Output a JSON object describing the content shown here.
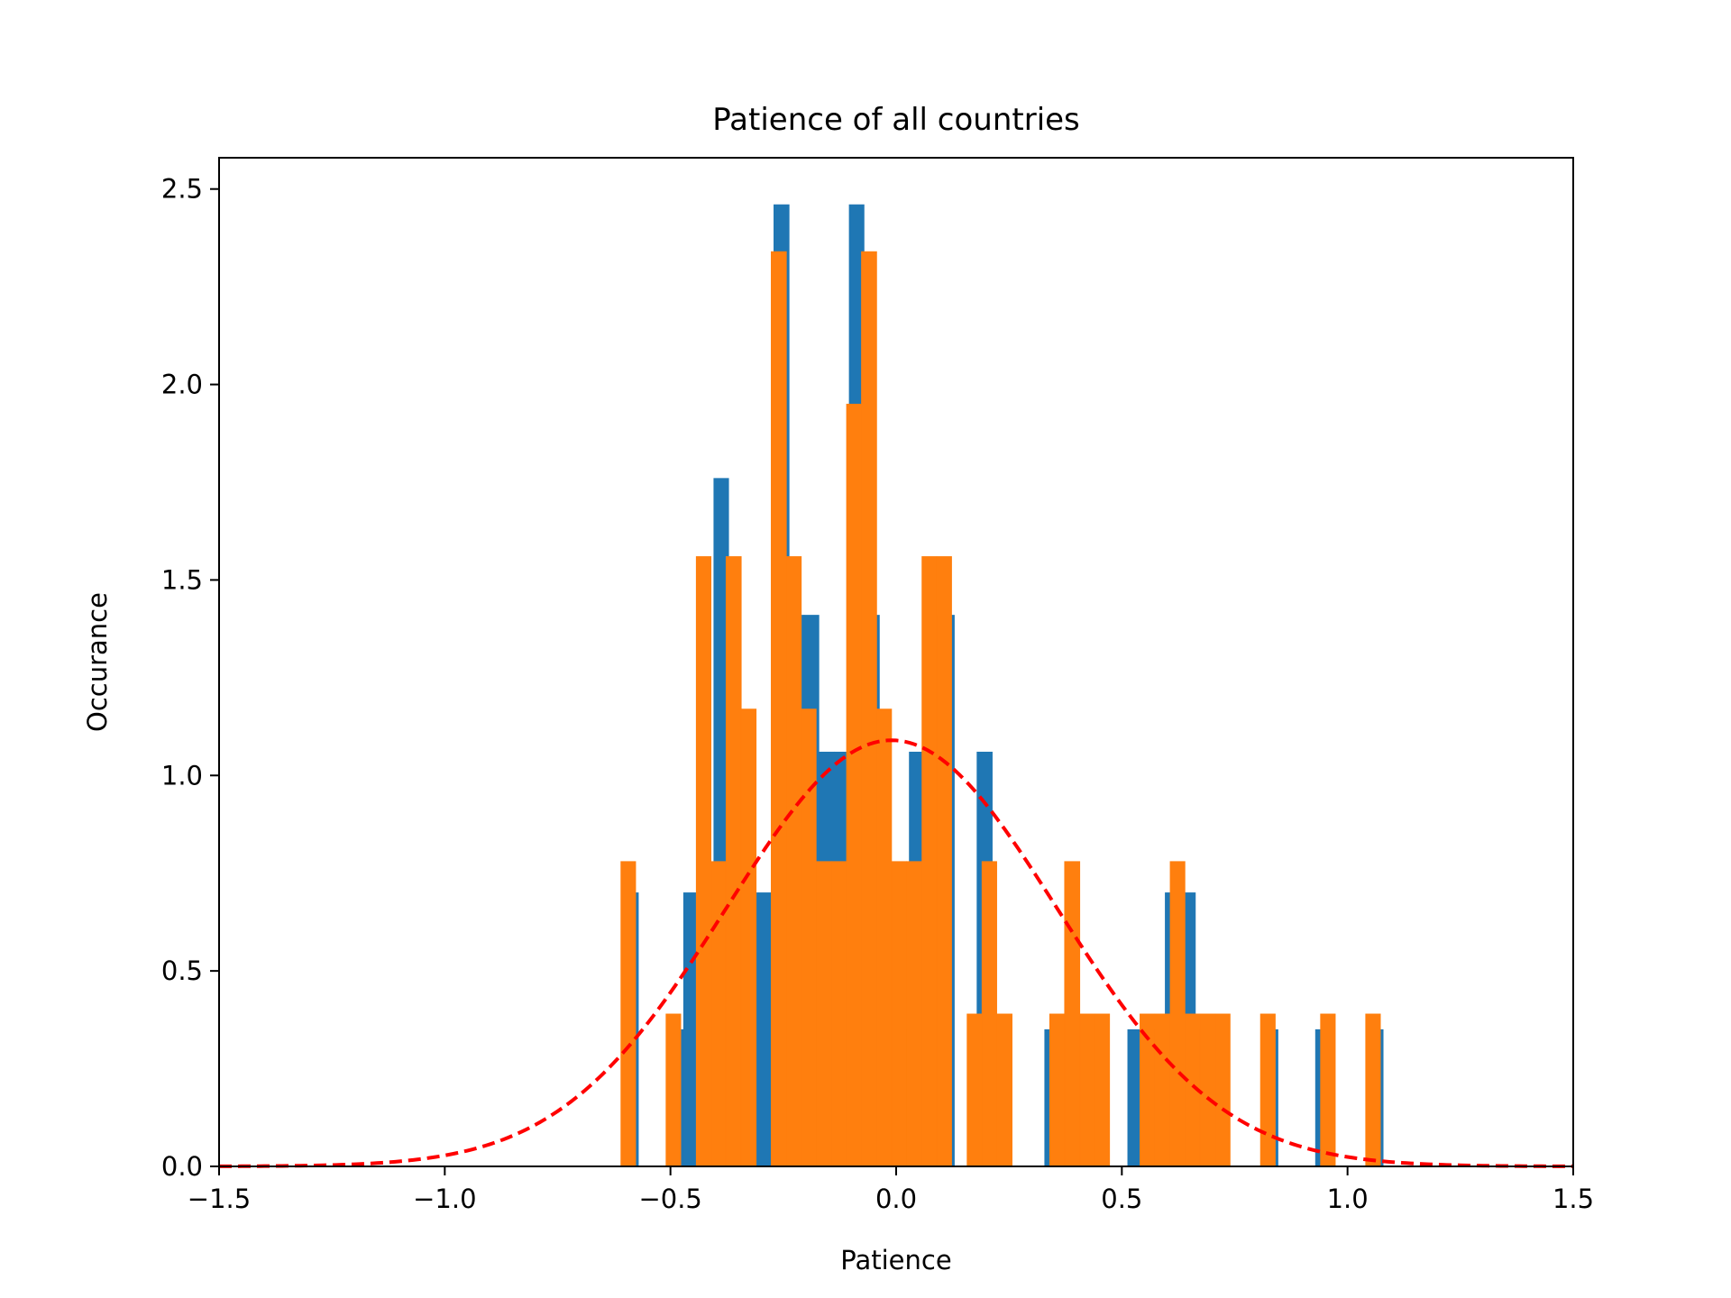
{
  "chart_data": {
    "type": "bar",
    "title": "Patience of all countries",
    "xlabel": "Patience",
    "ylabel": "Occurance",
    "xlim": [
      -1.5,
      1.5
    ],
    "ylim": [
      0,
      2.58
    ],
    "xticks": [
      -1.5,
      -1.0,
      -0.5,
      0.0,
      0.5,
      1.0,
      1.5
    ],
    "xtick_labels": [
      "−1.5",
      "−1.0",
      "−0.5",
      "0.0",
      "0.5",
      "1.0",
      "1.5"
    ],
    "yticks": [
      0.0,
      0.5,
      1.0,
      1.5,
      2.0,
      2.5
    ],
    "ytick_labels": [
      "0.0",
      "0.5",
      "1.0",
      "1.5",
      "2.0",
      "2.5"
    ],
    "grid": false,
    "series": [
      {
        "color": "#1f77b4",
        "bins": [
          [
            -0.604,
            -0.571,
            0.7
          ],
          [
            -0.504,
            -0.471,
            0.35
          ],
          [
            -0.471,
            -0.437,
            0.7
          ],
          [
            -0.404,
            -0.371,
            1.76
          ],
          [
            -0.371,
            -0.337,
            0.7
          ],
          [
            -0.337,
            -0.304,
            0.7
          ],
          [
            -0.304,
            -0.271,
            0.7
          ],
          [
            -0.271,
            -0.237,
            2.46
          ],
          [
            -0.237,
            -0.204,
            1.41
          ],
          [
            -0.204,
            -0.171,
            1.41
          ],
          [
            -0.171,
            -0.137,
            1.06
          ],
          [
            -0.137,
            -0.104,
            1.06
          ],
          [
            -0.104,
            -0.071,
            2.46
          ],
          [
            -0.071,
            -0.037,
            1.41
          ],
          [
            -0.037,
            -0.004,
            0.7
          ],
          [
            -0.004,
            0.029,
            0.35
          ],
          [
            0.029,
            0.063,
            1.06
          ],
          [
            0.063,
            0.096,
            1.41
          ],
          [
            0.096,
            0.129,
            1.41
          ],
          [
            0.179,
            0.213,
            1.06
          ],
          [
            0.213,
            0.246,
            0.35
          ],
          [
            0.329,
            0.363,
            0.35
          ],
          [
            0.363,
            0.396,
            0.35
          ],
          [
            0.396,
            0.429,
            0.35
          ],
          [
            0.429,
            0.463,
            0.35
          ],
          [
            0.513,
            0.546,
            0.35
          ],
          [
            0.546,
            0.579,
            0.35
          ],
          [
            0.596,
            0.629,
            0.7
          ],
          [
            0.629,
            0.663,
            0.7
          ],
          [
            0.663,
            0.696,
            0.35
          ],
          [
            0.813,
            0.846,
            0.35
          ],
          [
            0.929,
            0.963,
            0.35
          ],
          [
            1.046,
            1.079,
            0.35
          ]
        ]
      },
      {
        "color": "#ff7f0e",
        "bins": [
          [
            -0.61,
            -0.577,
            0.78
          ],
          [
            -0.51,
            -0.477,
            0.39
          ],
          [
            -0.443,
            -0.41,
            1.56
          ],
          [
            -0.41,
            -0.377,
            0.78
          ],
          [
            -0.377,
            -0.343,
            1.56
          ],
          [
            -0.343,
            -0.31,
            1.17
          ],
          [
            -0.277,
            -0.243,
            2.34
          ],
          [
            -0.243,
            -0.21,
            1.56
          ],
          [
            -0.21,
            -0.177,
            1.17
          ],
          [
            -0.177,
            -0.143,
            0.78
          ],
          [
            -0.143,
            -0.11,
            0.78
          ],
          [
            -0.11,
            -0.077,
            1.95
          ],
          [
            -0.077,
            -0.043,
            2.34
          ],
          [
            -0.043,
            -0.01,
            1.17
          ],
          [
            -0.01,
            0.023,
            0.78
          ],
          [
            0.023,
            0.057,
            0.78
          ],
          [
            0.057,
            0.09,
            1.56
          ],
          [
            0.09,
            0.123,
            1.56
          ],
          [
            0.157,
            0.19,
            0.39
          ],
          [
            0.19,
            0.223,
            0.78
          ],
          [
            0.223,
            0.257,
            0.39
          ],
          [
            0.34,
            0.373,
            0.39
          ],
          [
            0.373,
            0.407,
            0.78
          ],
          [
            0.407,
            0.44,
            0.39
          ],
          [
            0.44,
            0.473,
            0.39
          ],
          [
            0.54,
            0.573,
            0.39
          ],
          [
            0.573,
            0.607,
            0.39
          ],
          [
            0.607,
            0.64,
            0.78
          ],
          [
            0.64,
            0.673,
            0.39
          ],
          [
            0.673,
            0.707,
            0.39
          ],
          [
            0.707,
            0.74,
            0.39
          ],
          [
            0.807,
            0.84,
            0.39
          ],
          [
            0.94,
            0.973,
            0.39
          ],
          [
            1.04,
            1.073,
            0.39
          ]
        ]
      }
    ],
    "curve": {
      "type": "normal-pdf",
      "style": "dashed",
      "color": "#ff0000",
      "mean": -0.01,
      "std": 0.366
    }
  }
}
